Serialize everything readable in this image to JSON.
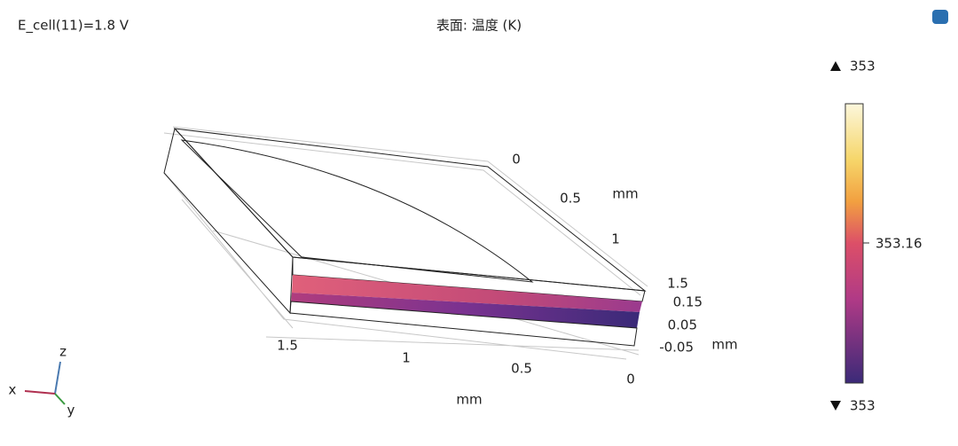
{
  "header": {
    "left": "E_cell(11)=1.8 V",
    "title": "表面: 温度 (K)"
  },
  "colorbar": {
    "max": "353",
    "mid": "353.16",
    "min": "353"
  },
  "axes": {
    "x_ticks": [
      "1.5",
      "1",
      "0.5",
      "0"
    ],
    "x_unit": "mm",
    "y_ticks": [
      "0",
      "0.5",
      "1",
      "1.5"
    ],
    "y_unit": "mm",
    "z_ticks": [
      "0.15",
      "0.05",
      "-0.05"
    ],
    "z_unit": "mm"
  },
  "triad": {
    "x": "x",
    "y": "y",
    "z": "z"
  }
}
